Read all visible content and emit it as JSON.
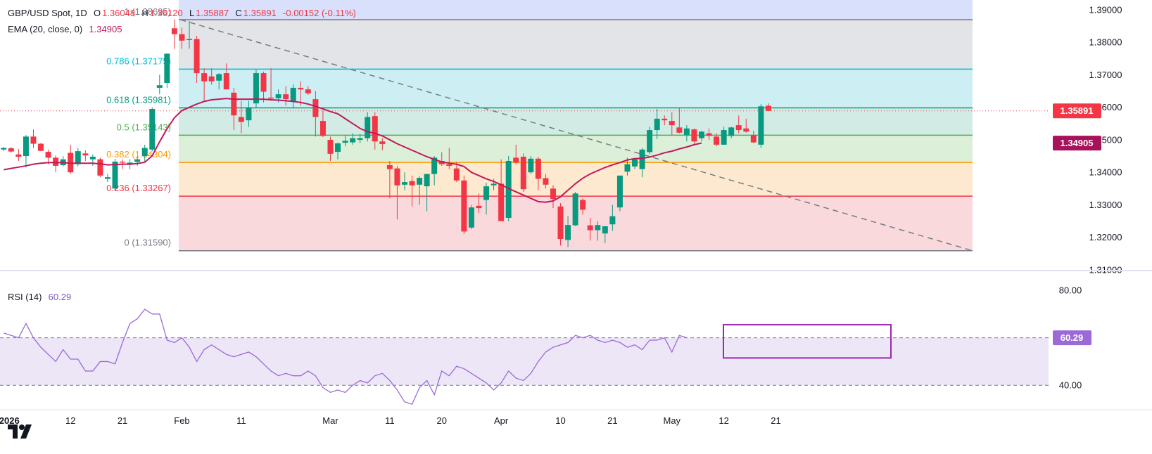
{
  "legend": {
    "symbol": "GBP/USD Spot, 1D",
    "o_label": "O",
    "open": "1.36048",
    "h_label": "H",
    "high": "1.36120",
    "l_label": "L",
    "low": "1.35887",
    "c_label": "C",
    "close": "1.35891",
    "change": "-0.00152 (-0.11%)",
    "ema_label": "EMA (20, close, 0)",
    "ema_value": "1.34905",
    "rsi_label": "RSI (14)",
    "rsi_value": "60.29"
  },
  "colors": {
    "up": "#089981",
    "down": "#f23645",
    "ema": "#c2185b",
    "rsi": "#9c6ad6",
    "trendline": "#787b86",
    "box": "#9c27b0"
  },
  "chart_data": [
    {
      "type": "candlestick",
      "title": "GBP/USD Spot, 1D",
      "ylim": [
        1.31,
        1.393
      ],
      "y_ticks": [
        "1.39000",
        "1.38000",
        "1.37000",
        "1.36000",
        "1.35000",
        "1.34000",
        "1.33000",
        "1.32000",
        "1.31000"
      ],
      "x_ticks": [
        {
          "idx": 0,
          "label": "2026"
        },
        {
          "idx": 9,
          "label": "12"
        },
        {
          "idx": 16,
          "label": "21"
        },
        {
          "idx": 24,
          "label": "Feb"
        },
        {
          "idx": 32,
          "label": "11"
        },
        {
          "idx": 44,
          "label": "Mar"
        },
        {
          "idx": 52,
          "label": "11"
        },
        {
          "idx": 59,
          "label": "20"
        },
        {
          "idx": 67,
          "label": "Apr"
        },
        {
          "idx": 75,
          "label": "10"
        },
        {
          "idx": 82,
          "label": "21"
        },
        {
          "idx": 90,
          "label": "May"
        },
        {
          "idx": 97,
          "label": "12"
        },
        {
          "idx": 104,
          "label": "21"
        }
      ],
      "last_price_label": "1.35891",
      "ema_price_label": "1.34905",
      "fibonacci": [
        {
          "level": "0.786",
          "price": 1.37175,
          "label": "0.786 (1.37175)",
          "color": "#00bcd4",
          "fill": "#cdeff3"
        },
        {
          "level": "0.618",
          "price": 1.35981,
          "label": "0.618 (1.35981)",
          "color": "#089981",
          "fill": "#d2ece5"
        },
        {
          "level": "0.5",
          "price": 1.35143,
          "label": "0.5 (1.35143)",
          "color": "#4caf50",
          "fill": "#dcefd8"
        },
        {
          "level": "0.382",
          "price": 1.34304,
          "label": "0.382 (1.34304)",
          "color": "#ff9800",
          "fill": "#fde9cf"
        },
        {
          "level": "0.236",
          "price": 1.33267,
          "label": "0.236 (1.33267)",
          "color": "#f23645",
          "fill": "#f9d9dc"
        },
        {
          "level": "0",
          "price": 1.3159,
          "label": "0 (1.31590)",
          "color": "#787b86",
          "fill": "#f9d9dc"
        },
        {
          "level": "1",
          "price": 1.38695,
          "label": "1 (1.38695)",
          "color": "#787b86",
          "fill": "#e3e4e7"
        }
      ],
      "candles": [
        {
          "o": 1.347,
          "h": 1.3478,
          "l": 1.3465,
          "c": 1.3475
        },
        {
          "o": 1.3474,
          "h": 1.3478,
          "l": 1.346,
          "c": 1.3464
        },
        {
          "o": 1.3455,
          "h": 1.3472,
          "l": 1.3435,
          "c": 1.3448
        },
        {
          "o": 1.345,
          "h": 1.3515,
          "l": 1.3415,
          "c": 1.351
        },
        {
          "o": 1.351,
          "h": 1.3532,
          "l": 1.3475,
          "c": 1.3488
        },
        {
          "o": 1.3488,
          "h": 1.349,
          "l": 1.3465,
          "c": 1.3466
        },
        {
          "o": 1.3463,
          "h": 1.347,
          "l": 1.3425,
          "c": 1.3445
        },
        {
          "o": 1.3445,
          "h": 1.3452,
          "l": 1.34,
          "c": 1.342
        },
        {
          "o": 1.3422,
          "h": 1.345,
          "l": 1.3418,
          "c": 1.344
        },
        {
          "o": 1.346,
          "h": 1.3485,
          "l": 1.3395,
          "c": 1.34
        },
        {
          "o": 1.3425,
          "h": 1.3475,
          "l": 1.3418,
          "c": 1.3465
        },
        {
          "o": 1.3458,
          "h": 1.3468,
          "l": 1.3435,
          "c": 1.3452
        },
        {
          "o": 1.344,
          "h": 1.3455,
          "l": 1.342,
          "c": 1.3448
        },
        {
          "o": 1.344,
          "h": 1.3445,
          "l": 1.3385,
          "c": 1.339
        },
        {
          "o": 1.338,
          "h": 1.3395,
          "l": 1.337,
          "c": 1.3385
        },
        {
          "o": 1.335,
          "h": 1.3442,
          "l": 1.3345,
          "c": 1.3433
        },
        {
          "o": 1.3433,
          "h": 1.344,
          "l": 1.341,
          "c": 1.3432
        },
        {
          "o": 1.3425,
          "h": 1.344,
          "l": 1.341,
          "c": 1.343
        },
        {
          "o": 1.3432,
          "h": 1.3448,
          "l": 1.342,
          "c": 1.344
        },
        {
          "o": 1.345,
          "h": 1.3485,
          "l": 1.343,
          "c": 1.3475
        },
        {
          "o": 1.347,
          "h": 1.36,
          "l": 1.3465,
          "c": 1.3595
        },
        {
          "o": 1.366,
          "h": 1.37,
          "l": 1.364,
          "c": 1.3668
        },
        {
          "o": 1.3675,
          "h": 1.3765,
          "l": 1.366,
          "c": 1.3765
        },
        {
          "o": 1.3843,
          "h": 1.387,
          "l": 1.378,
          "c": 1.3825
        },
        {
          "o": 1.3825,
          "h": 1.3845,
          "l": 1.378,
          "c": 1.3805
        },
        {
          "o": 1.3807,
          "h": 1.3865,
          "l": 1.378,
          "c": 1.381
        },
        {
          "o": 1.381,
          "h": 1.382,
          "l": 1.3675,
          "c": 1.3705
        },
        {
          "o": 1.3705,
          "h": 1.372,
          "l": 1.362,
          "c": 1.368
        },
        {
          "o": 1.3695,
          "h": 1.372,
          "l": 1.367,
          "c": 1.368
        },
        {
          "o": 1.3682,
          "h": 1.3705,
          "l": 1.3655,
          "c": 1.3702
        },
        {
          "o": 1.3705,
          "h": 1.3735,
          "l": 1.366,
          "c": 1.3655
        },
        {
          "o": 1.3645,
          "h": 1.366,
          "l": 1.353,
          "c": 1.3575
        },
        {
          "o": 1.357,
          "h": 1.362,
          "l": 1.352,
          "c": 1.3555
        },
        {
          "o": 1.356,
          "h": 1.362,
          "l": 1.354,
          "c": 1.36
        },
        {
          "o": 1.3612,
          "h": 1.3715,
          "l": 1.36,
          "c": 1.3705
        },
        {
          "o": 1.3705,
          "h": 1.371,
          "l": 1.3615,
          "c": 1.3648
        },
        {
          "o": 1.363,
          "h": 1.372,
          "l": 1.362,
          "c": 1.3627
        },
        {
          "o": 1.3628,
          "h": 1.3655,
          "l": 1.3615,
          "c": 1.364
        },
        {
          "o": 1.364,
          "h": 1.3665,
          "l": 1.3605,
          "c": 1.3625
        },
        {
          "o": 1.3618,
          "h": 1.367,
          "l": 1.36,
          "c": 1.366
        },
        {
          "o": 1.366,
          "h": 1.368,
          "l": 1.3605,
          "c": 1.3655
        },
        {
          "o": 1.3655,
          "h": 1.3665,
          "l": 1.3638,
          "c": 1.3643
        },
        {
          "o": 1.3625,
          "h": 1.365,
          "l": 1.351,
          "c": 1.357
        },
        {
          "o": 1.3558,
          "h": 1.359,
          "l": 1.3508,
          "c": 1.3512
        },
        {
          "o": 1.35,
          "h": 1.351,
          "l": 1.3435,
          "c": 1.3457
        },
        {
          "o": 1.3463,
          "h": 1.3492,
          "l": 1.344,
          "c": 1.3489
        },
        {
          "o": 1.3491,
          "h": 1.3515,
          "l": 1.348,
          "c": 1.3497
        },
        {
          "o": 1.3492,
          "h": 1.352,
          "l": 1.3485,
          "c": 1.3505
        },
        {
          "o": 1.35,
          "h": 1.3518,
          "l": 1.349,
          "c": 1.3505
        },
        {
          "o": 1.3505,
          "h": 1.3585,
          "l": 1.3495,
          "c": 1.357
        },
        {
          "o": 1.3573,
          "h": 1.3585,
          "l": 1.347,
          "c": 1.3495
        },
        {
          "o": 1.3495,
          "h": 1.3505,
          "l": 1.3468,
          "c": 1.3487
        },
        {
          "o": 1.3422,
          "h": 1.3435,
          "l": 1.332,
          "c": 1.341
        },
        {
          "o": 1.3412,
          "h": 1.342,
          "l": 1.3255,
          "c": 1.336
        },
        {
          "o": 1.3362,
          "h": 1.34,
          "l": 1.3345,
          "c": 1.337
        },
        {
          "o": 1.3373,
          "h": 1.339,
          "l": 1.3295,
          "c": 1.336
        },
        {
          "o": 1.3362,
          "h": 1.3388,
          "l": 1.33,
          "c": 1.3383
        },
        {
          "o": 1.3357,
          "h": 1.3395,
          "l": 1.328,
          "c": 1.3395
        },
        {
          "o": 1.3395,
          "h": 1.345,
          "l": 1.336,
          "c": 1.3445
        },
        {
          "o": 1.3435,
          "h": 1.3462,
          "l": 1.342,
          "c": 1.3425
        },
        {
          "o": 1.3425,
          "h": 1.3475,
          "l": 1.341,
          "c": 1.342
        },
        {
          "o": 1.3412,
          "h": 1.3432,
          "l": 1.337,
          "c": 1.3375
        },
        {
          "o": 1.3375,
          "h": 1.339,
          "l": 1.321,
          "c": 1.3218
        },
        {
          "o": 1.323,
          "h": 1.33,
          "l": 1.3225,
          "c": 1.3292
        },
        {
          "o": 1.3297,
          "h": 1.3335,
          "l": 1.3275,
          "c": 1.329
        },
        {
          "o": 1.3315,
          "h": 1.3368,
          "l": 1.327,
          "c": 1.3357
        },
        {
          "o": 1.336,
          "h": 1.338,
          "l": 1.3345,
          "c": 1.3365
        },
        {
          "o": 1.3365,
          "h": 1.344,
          "l": 1.325,
          "c": 1.325
        },
        {
          "o": 1.326,
          "h": 1.345,
          "l": 1.325,
          "c": 1.3435
        },
        {
          "o": 1.3445,
          "h": 1.3485,
          "l": 1.3425,
          "c": 1.343
        },
        {
          "o": 1.3448,
          "h": 1.3458,
          "l": 1.334,
          "c": 1.3348
        },
        {
          "o": 1.34,
          "h": 1.345,
          "l": 1.3395,
          "c": 1.3442
        },
        {
          "o": 1.3442,
          "h": 1.3448,
          "l": 1.3345,
          "c": 1.338
        },
        {
          "o": 1.3382,
          "h": 1.3395,
          "l": 1.335,
          "c": 1.3362
        },
        {
          "o": 1.335,
          "h": 1.336,
          "l": 1.329,
          "c": 1.3318
        },
        {
          "o": 1.3295,
          "h": 1.3305,
          "l": 1.3175,
          "c": 1.3195
        },
        {
          "o": 1.3192,
          "h": 1.3265,
          "l": 1.317,
          "c": 1.3238
        },
        {
          "o": 1.3237,
          "h": 1.334,
          "l": 1.3235,
          "c": 1.3335
        },
        {
          "o": 1.3315,
          "h": 1.332,
          "l": 1.327,
          "c": 1.3285
        },
        {
          "o": 1.3237,
          "h": 1.326,
          "l": 1.319,
          "c": 1.3222
        },
        {
          "o": 1.3222,
          "h": 1.325,
          "l": 1.319,
          "c": 1.3238
        },
        {
          "o": 1.3212,
          "h": 1.3235,
          "l": 1.3182,
          "c": 1.3234
        },
        {
          "o": 1.324,
          "h": 1.33,
          "l": 1.322,
          "c": 1.3265
        },
        {
          "o": 1.3292,
          "h": 1.339,
          "l": 1.328,
          "c": 1.339
        },
        {
          "o": 1.3402,
          "h": 1.3445,
          "l": 1.339,
          "c": 1.3425
        },
        {
          "o": 1.3418,
          "h": 1.3442,
          "l": 1.341,
          "c": 1.344
        },
        {
          "o": 1.341,
          "h": 1.3475,
          "l": 1.3385,
          "c": 1.347
        },
        {
          "o": 1.3462,
          "h": 1.354,
          "l": 1.3455,
          "c": 1.353
        },
        {
          "o": 1.353,
          "h": 1.3595,
          "l": 1.3502,
          "c": 1.3565
        },
        {
          "o": 1.3565,
          "h": 1.3575,
          "l": 1.3545,
          "c": 1.356
        },
        {
          "o": 1.3558,
          "h": 1.3585,
          "l": 1.3515,
          "c": 1.3545
        },
        {
          "o": 1.3538,
          "h": 1.3598,
          "l": 1.352,
          "c": 1.3522
        },
        {
          "o": 1.3515,
          "h": 1.3545,
          "l": 1.3495,
          "c": 1.3535
        },
        {
          "o": 1.3532,
          "h": 1.3535,
          "l": 1.3485,
          "c": 1.3495
        },
        {
          "o": 1.3505,
          "h": 1.3528,
          "l": 1.3495,
          "c": 1.3525
        },
        {
          "o": 1.352,
          "h": 1.3535,
          "l": 1.35,
          "c": 1.3512
        },
        {
          "o": 1.351,
          "h": 1.352,
          "l": 1.348,
          "c": 1.3485
        },
        {
          "o": 1.3485,
          "h": 1.354,
          "l": 1.3485,
          "c": 1.353
        },
        {
          "o": 1.3512,
          "h": 1.354,
          "l": 1.3505,
          "c": 1.3538
        },
        {
          "o": 1.3545,
          "h": 1.3575,
          "l": 1.352,
          "c": 1.353
        },
        {
          "o": 1.3535,
          "h": 1.3565,
          "l": 1.3522,
          "c": 1.3525
        },
        {
          "o": 1.3515,
          "h": 1.3528,
          "l": 1.349,
          "c": 1.3492
        },
        {
          "o": 1.3485,
          "h": 1.361,
          "l": 1.3475,
          "c": 1.3603
        },
        {
          "o": 1.36048,
          "h": 1.3612,
          "l": 1.35887,
          "c": 1.35891
        }
      ],
      "ema": [
        1.3408,
        1.3412,
        1.3416,
        1.342,
        1.3425,
        1.3428,
        1.343,
        1.343,
        1.343,
        1.3428,
        1.3428,
        1.3428,
        1.3428,
        1.3426,
        1.3423,
        1.3424,
        1.3425,
        1.3425,
        1.3427,
        1.3431,
        1.3451,
        1.3494,
        1.3534,
        1.3568,
        1.359,
        1.36,
        1.361,
        1.3618,
        1.3623,
        1.3625,
        1.3627,
        1.3625,
        1.3625,
        1.3625,
        1.3625,
        1.3625,
        1.3623,
        1.3622,
        1.362,
        1.3618,
        1.3615,
        1.361,
        1.3603,
        1.3595,
        1.3587,
        1.358,
        1.3565,
        1.355,
        1.3535,
        1.3525,
        1.352,
        1.3512,
        1.35,
        1.3488,
        1.3478,
        1.3468,
        1.3458,
        1.3448,
        1.344,
        1.3432,
        1.3428,
        1.3425,
        1.3418,
        1.34,
        1.339,
        1.338,
        1.3372,
        1.3362,
        1.335,
        1.334,
        1.333,
        1.332,
        1.331,
        1.3308,
        1.3312,
        1.3325,
        1.3345,
        1.3365,
        1.3382,
        1.3395,
        1.3405,
        1.3415,
        1.3423,
        1.343,
        1.3438,
        1.3442,
        1.3443,
        1.3447,
        1.3453,
        1.346,
        1.3465,
        1.3472,
        1.3478,
        1.3485,
        1.349
      ],
      "trendline": {
        "start": {
          "idx": 20,
          "price": 1.38695
        },
        "end": {
          "idx": 107,
          "price": 1.3159
        }
      }
    },
    {
      "type": "line",
      "title": "RSI (14)",
      "ylim": [
        30,
        88
      ],
      "y_ticks": [
        "80.00",
        "40.00"
      ],
      "levels": [
        60,
        40
      ],
      "last_value_label": "60.29",
      "values": [
        62,
        61,
        60,
        66,
        60,
        56,
        53,
        50,
        55,
        51,
        51,
        46,
        46,
        50,
        50,
        49,
        58,
        66,
        68,
        72,
        70,
        70,
        59,
        58,
        60,
        56,
        50,
        55,
        57,
        55,
        53,
        52,
        53,
        54,
        52,
        49,
        46,
        44,
        45,
        44,
        44,
        46,
        44,
        39,
        37,
        38,
        37,
        40,
        42,
        41,
        44,
        45,
        42,
        38,
        33,
        32,
        39,
        42,
        36,
        46,
        44,
        48,
        47,
        45,
        43,
        41,
        38,
        41,
        46,
        43,
        42,
        45,
        50,
        54,
        56,
        57,
        58,
        61,
        60,
        61,
        59,
        58,
        59,
        58,
        56,
        57,
        55,
        59,
        59,
        60,
        54,
        61,
        60
      ]
    }
  ]
}
